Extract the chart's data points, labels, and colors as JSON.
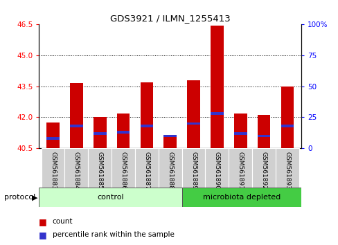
{
  "title": "GDS3921 / ILMN_1255413",
  "samples": [
    "GSM561883",
    "GSM561884",
    "GSM561885",
    "GSM561886",
    "GSM561887",
    "GSM561888",
    "GSM561889",
    "GSM561890",
    "GSM561891",
    "GSM561892",
    "GSM561893"
  ],
  "count_values": [
    41.75,
    43.65,
    42.0,
    42.2,
    43.7,
    41.1,
    43.8,
    46.45,
    42.2,
    42.1,
    43.5
  ],
  "percentile_values": [
    8,
    18,
    12,
    13,
    18,
    10,
    20,
    28,
    12,
    10,
    18
  ],
  "y_min": 40.5,
  "y_max": 46.5,
  "y_ticks_left": [
    40.5,
    42.0,
    43.5,
    45.0,
    46.5
  ],
  "y_ticks_right": [
    0,
    25,
    50,
    75,
    100
  ],
  "bar_color_red": "#cc0000",
  "bar_color_blue": "#3333cc",
  "n_control": 6,
  "n_micro": 5,
  "control_label": "control",
  "microbiota_label": "microbiota depleted",
  "protocol_label": "protocol",
  "legend_count": "count",
  "legend_percentile": "percentile rank within the sample",
  "bar_width": 0.55,
  "background_color": "#ffffff",
  "group_bg_control": "#ccffcc",
  "group_bg_microbiota": "#44cc44",
  "label_bg": "#d0d0d0",
  "gridline_ticks": [
    42.0,
    43.5,
    45.0
  ]
}
